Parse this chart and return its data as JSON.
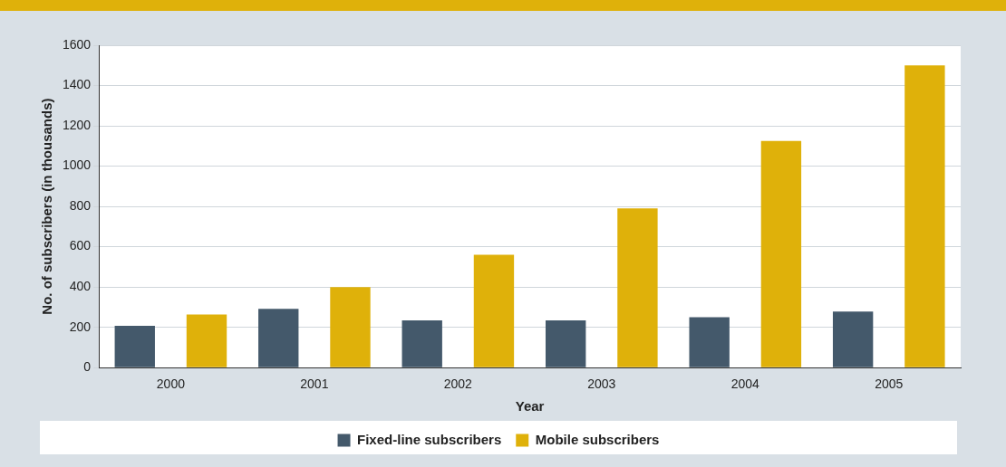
{
  "chart_data": {
    "type": "bar",
    "xlabel": "Year",
    "ylabel": "No. of subscribers (in thousands)",
    "categories": [
      "2000",
      "2001",
      "2002",
      "2003",
      "2004",
      "2005"
    ],
    "series": [
      {
        "name": "Fixed-line subscribers",
        "color": "#44596b",
        "values": [
          207,
          292,
          235,
          235,
          250,
          278
        ]
      },
      {
        "name": "Mobile subscribers",
        "color": "#dfb10a",
        "values": [
          264,
          400,
          560,
          790,
          1125,
          1500
        ]
      }
    ],
    "ylim": [
      0,
      1600
    ],
    "yticks": [
      0,
      200,
      400,
      600,
      800,
      1000,
      1200,
      1400,
      1600
    ],
    "grid": "y",
    "legend": "bottom"
  }
}
